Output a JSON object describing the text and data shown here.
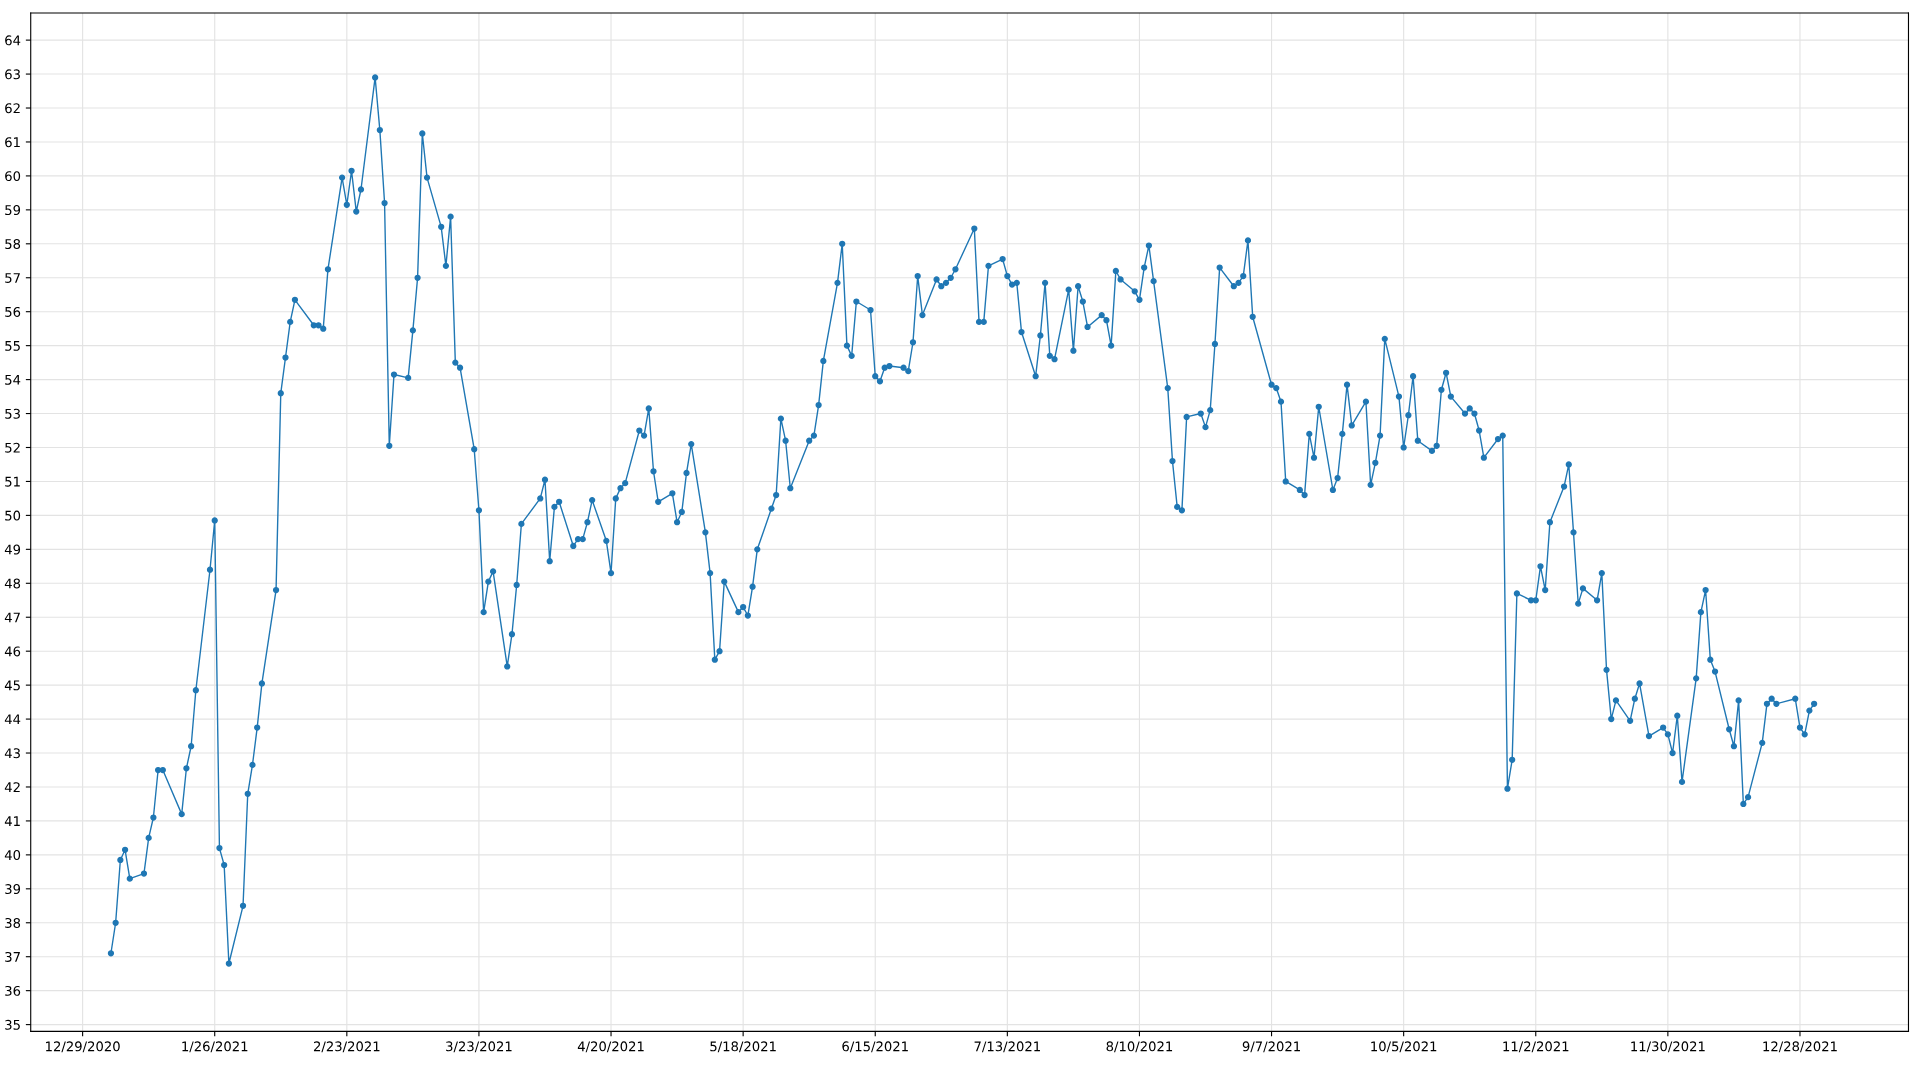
{
  "chart_data": {
    "type": "line",
    "marker": "circle",
    "line_style": "solid",
    "grid": true,
    "xlim": [
      "2020-12-18",
      "2022-01-20"
    ],
    "ylim": [
      34.8,
      64.8
    ],
    "xticks": [
      {
        "value": "2020-12-29",
        "label": "12/29/2020"
      },
      {
        "value": "2021-01-26",
        "label": "1/26/2021"
      },
      {
        "value": "2021-02-23",
        "label": "2/23/2021"
      },
      {
        "value": "2021-03-23",
        "label": "3/23/2021"
      },
      {
        "value": "2021-04-20",
        "label": "4/20/2021"
      },
      {
        "value": "2021-05-18",
        "label": "5/18/2021"
      },
      {
        "value": "2021-06-15",
        "label": "6/15/2021"
      },
      {
        "value": "2021-07-13",
        "label": "7/13/2021"
      },
      {
        "value": "2021-08-10",
        "label": "8/10/2021"
      },
      {
        "value": "2021-09-07",
        "label": "9/7/2021"
      },
      {
        "value": "2021-10-05",
        "label": "10/5/2021"
      },
      {
        "value": "2021-11-02",
        "label": "11/2/2021"
      },
      {
        "value": "2021-11-30",
        "label": "11/30/2021"
      },
      {
        "value": "2021-12-28",
        "label": "12/28/2021"
      }
    ],
    "yticks": [
      35,
      36,
      37,
      38,
      39,
      40,
      41,
      42,
      43,
      44,
      45,
      46,
      47,
      48,
      49,
      50,
      51,
      52,
      53,
      54,
      55,
      56,
      57,
      58,
      59,
      60,
      61,
      62,
      63,
      64
    ],
    "x": [
      "2021-01-04",
      "2021-01-05",
      "2021-01-06",
      "2021-01-07",
      "2021-01-08",
      "2021-01-11",
      "2021-01-12",
      "2021-01-13",
      "2021-01-14",
      "2021-01-15",
      "2021-01-19",
      "2021-01-20",
      "2021-01-21",
      "2021-01-22",
      "2021-01-25",
      "2021-01-26",
      "2021-01-27",
      "2021-01-28",
      "2021-01-29",
      "2021-02-01",
      "2021-02-02",
      "2021-02-03",
      "2021-02-04",
      "2021-02-05",
      "2021-02-08",
      "2021-02-09",
      "2021-02-10",
      "2021-02-11",
      "2021-02-12",
      "2021-02-16",
      "2021-02-17",
      "2021-02-18",
      "2021-02-19",
      "2021-02-22",
      "2021-02-23",
      "2021-02-24",
      "2021-02-25",
      "2021-02-26",
      "2021-03-01",
      "2021-03-02",
      "2021-03-03",
      "2021-03-04",
      "2021-03-05",
      "2021-03-08",
      "2021-03-09",
      "2021-03-10",
      "2021-03-11",
      "2021-03-12",
      "2021-03-15",
      "2021-03-16",
      "2021-03-17",
      "2021-03-18",
      "2021-03-19",
      "2021-03-22",
      "2021-03-23",
      "2021-03-24",
      "2021-03-25",
      "2021-03-26",
      "2021-03-29",
      "2021-03-30",
      "2021-03-31",
      "2021-04-01",
      "2021-04-05",
      "2021-04-06",
      "2021-04-07",
      "2021-04-08",
      "2021-04-09",
      "2021-04-12",
      "2021-04-13",
      "2021-04-14",
      "2021-04-15",
      "2021-04-16",
      "2021-04-19",
      "2021-04-20",
      "2021-04-21",
      "2021-04-22",
      "2021-04-23",
      "2021-04-26",
      "2021-04-27",
      "2021-04-28",
      "2021-04-29",
      "2021-04-30",
      "2021-05-03",
      "2021-05-04",
      "2021-05-05",
      "2021-05-06",
      "2021-05-07",
      "2021-05-10",
      "2021-05-11",
      "2021-05-12",
      "2021-05-13",
      "2021-05-14",
      "2021-05-17",
      "2021-05-18",
      "2021-05-19",
      "2021-05-20",
      "2021-05-21",
      "2021-05-24",
      "2021-05-25",
      "2021-05-26",
      "2021-05-27",
      "2021-05-28",
      "2021-06-01",
      "2021-06-02",
      "2021-06-03",
      "2021-06-04",
      "2021-06-07",
      "2021-06-08",
      "2021-06-09",
      "2021-06-10",
      "2021-06-11",
      "2021-06-14",
      "2021-06-15",
      "2021-06-16",
      "2021-06-17",
      "2021-06-18",
      "2021-06-21",
      "2021-06-22",
      "2021-06-23",
      "2021-06-24",
      "2021-06-25",
      "2021-06-28",
      "2021-06-29",
      "2021-06-30",
      "2021-07-01",
      "2021-07-02",
      "2021-07-06",
      "2021-07-07",
      "2021-07-08",
      "2021-07-09",
      "2021-07-12",
      "2021-07-13",
      "2021-07-14",
      "2021-07-15",
      "2021-07-16",
      "2021-07-19",
      "2021-07-20",
      "2021-07-21",
      "2021-07-22",
      "2021-07-23",
      "2021-07-26",
      "2021-07-27",
      "2021-07-28",
      "2021-07-29",
      "2021-07-30",
      "2021-08-02",
      "2021-08-03",
      "2021-08-04",
      "2021-08-05",
      "2021-08-06",
      "2021-08-09",
      "2021-08-10",
      "2021-08-11",
      "2021-08-12",
      "2021-08-13",
      "2021-08-16",
      "2021-08-17",
      "2021-08-18",
      "2021-08-19",
      "2021-08-20",
      "2021-08-23",
      "2021-08-24",
      "2021-08-25",
      "2021-08-26",
      "2021-08-27",
      "2021-08-30",
      "2021-08-31",
      "2021-09-01",
      "2021-09-02",
      "2021-09-03",
      "2021-09-07",
      "2021-09-08",
      "2021-09-09",
      "2021-09-10",
      "2021-09-13",
      "2021-09-14",
      "2021-09-15",
      "2021-09-16",
      "2021-09-17",
      "2021-09-20",
      "2021-09-21",
      "2021-09-22",
      "2021-09-23",
      "2021-09-24",
      "2021-09-27",
      "2021-09-28",
      "2021-09-29",
      "2021-09-30",
      "2021-10-01",
      "2021-10-04",
      "2021-10-05",
      "2021-10-06",
      "2021-10-07",
      "2021-10-08",
      "2021-10-11",
      "2021-10-12",
      "2021-10-13",
      "2021-10-14",
      "2021-10-15",
      "2021-10-18",
      "2021-10-19",
      "2021-10-20",
      "2021-10-21",
      "2021-10-22",
      "2021-10-25",
      "2021-10-26",
      "2021-10-27",
      "2021-10-28",
      "2021-10-29",
      "2021-11-01",
      "2021-11-02",
      "2021-11-03",
      "2021-11-04",
      "2021-11-05",
      "2021-11-08",
      "2021-11-09",
      "2021-11-10",
      "2021-11-11",
      "2021-11-12",
      "2021-11-15",
      "2021-11-16",
      "2021-11-17",
      "2021-11-18",
      "2021-11-19",
      "2021-11-22",
      "2021-11-23",
      "2021-11-24",
      "2021-11-26",
      "2021-11-29",
      "2021-11-30",
      "2021-12-01",
      "2021-12-02",
      "2021-12-03",
      "2021-12-06",
      "2021-12-07",
      "2021-12-08",
      "2021-12-09",
      "2021-12-10",
      "2021-12-13",
      "2021-12-14",
      "2021-12-15",
      "2021-12-16",
      "2021-12-17",
      "2021-12-20",
      "2021-12-21",
      "2021-12-22",
      "2021-12-23",
      "2021-12-27",
      "2021-12-28",
      "2021-12-29",
      "2021-12-30",
      "2021-12-31"
    ],
    "series": [
      {
        "color": "#1f77b4",
        "values": [
          37.1,
          38.0,
          39.85,
          40.15,
          39.3,
          39.45,
          40.5,
          41.1,
          42.5,
          42.5,
          41.2,
          42.55,
          43.2,
          44.85,
          48.4,
          49.85,
          40.2,
          39.7,
          36.8,
          38.5,
          41.8,
          42.65,
          43.75,
          45.05,
          47.8,
          53.6,
          54.65,
          55.7,
          56.35,
          55.6,
          55.6,
          55.5,
          57.25,
          59.95,
          59.15,
          60.15,
          58.95,
          59.6,
          62.9,
          61.35,
          59.2,
          52.05,
          54.15,
          54.05,
          55.45,
          57.0,
          61.25,
          59.95,
          58.5,
          57.35,
          58.8,
          54.5,
          54.35,
          51.95,
          50.15,
          47.15,
          48.05,
          48.35,
          45.55,
          46.5,
          47.95,
          49.75,
          50.5,
          51.05,
          48.65,
          50.25,
          50.4,
          49.1,
          49.3,
          49.3,
          49.8,
          50.45,
          49.25,
          48.3,
          50.5,
          50.8,
          50.95,
          52.5,
          52.35,
          53.15,
          51.3,
          50.4,
          50.65,
          49.8,
          50.1,
          51.25,
          52.1,
          49.5,
          48.3,
          45.75,
          46.0,
          48.05,
          47.15,
          47.3,
          47.05,
          47.9,
          49.0,
          50.2,
          50.6,
          52.85,
          52.2,
          50.8,
          52.2,
          52.35,
          53.25,
          54.55,
          56.85,
          58.0,
          55.0,
          54.7,
          56.3,
          56.05,
          54.1,
          53.95,
          54.35,
          54.4,
          54.35,
          54.25,
          55.1,
          57.05,
          55.9,
          56.95,
          56.75,
          56.85,
          57.0,
          57.25,
          58.45,
          55.7,
          55.7,
          57.35,
          57.55,
          57.05,
          56.8,
          56.85,
          55.4,
          54.1,
          55.3,
          56.85,
          54.7,
          54.6,
          56.65,
          54.85,
          56.75,
          56.3,
          55.55,
          55.9,
          55.75,
          55.0,
          57.2,
          56.95,
          56.6,
          56.35,
          57.3,
          57.95,
          56.9,
          53.75,
          51.6,
          50.25,
          50.15,
          52.9,
          53.0,
          52.6,
          53.1,
          55.05,
          57.3,
          56.75,
          56.85,
          57.05,
          58.1,
          55.85,
          53.85,
          53.75,
          53.35,
          51.0,
          50.75,
          50.6,
          52.4,
          51.7,
          53.2,
          50.75,
          51.1,
          52.4,
          53.85,
          52.65,
          53.35,
          50.9,
          51.55,
          52.35,
          55.2,
          53.5,
          52.0,
          52.95,
          54.1,
          52.2,
          51.9,
          52.05,
          53.7,
          54.2,
          53.5,
          53.0,
          53.15,
          53.0,
          52.5,
          51.7,
          52.25,
          52.35,
          41.95,
          42.8,
          47.7,
          47.5,
          47.5,
          48.5,
          47.8,
          49.8,
          50.85,
          51.5,
          49.5,
          47.4,
          47.85,
          47.5,
          48.3,
          45.45,
          44.0,
          44.55,
          43.95,
          44.6,
          45.05,
          43.5,
          43.75,
          43.55,
          43.0,
          44.1,
          42.15,
          45.2,
          47.15,
          47.8,
          45.75,
          45.4,
          43.7,
          43.2,
          44.55,
          41.5,
          41.7,
          43.3,
          44.45,
          44.6,
          44.45,
          44.6,
          43.75,
          43.55,
          44.25,
          44.45
        ]
      }
    ]
  }
}
